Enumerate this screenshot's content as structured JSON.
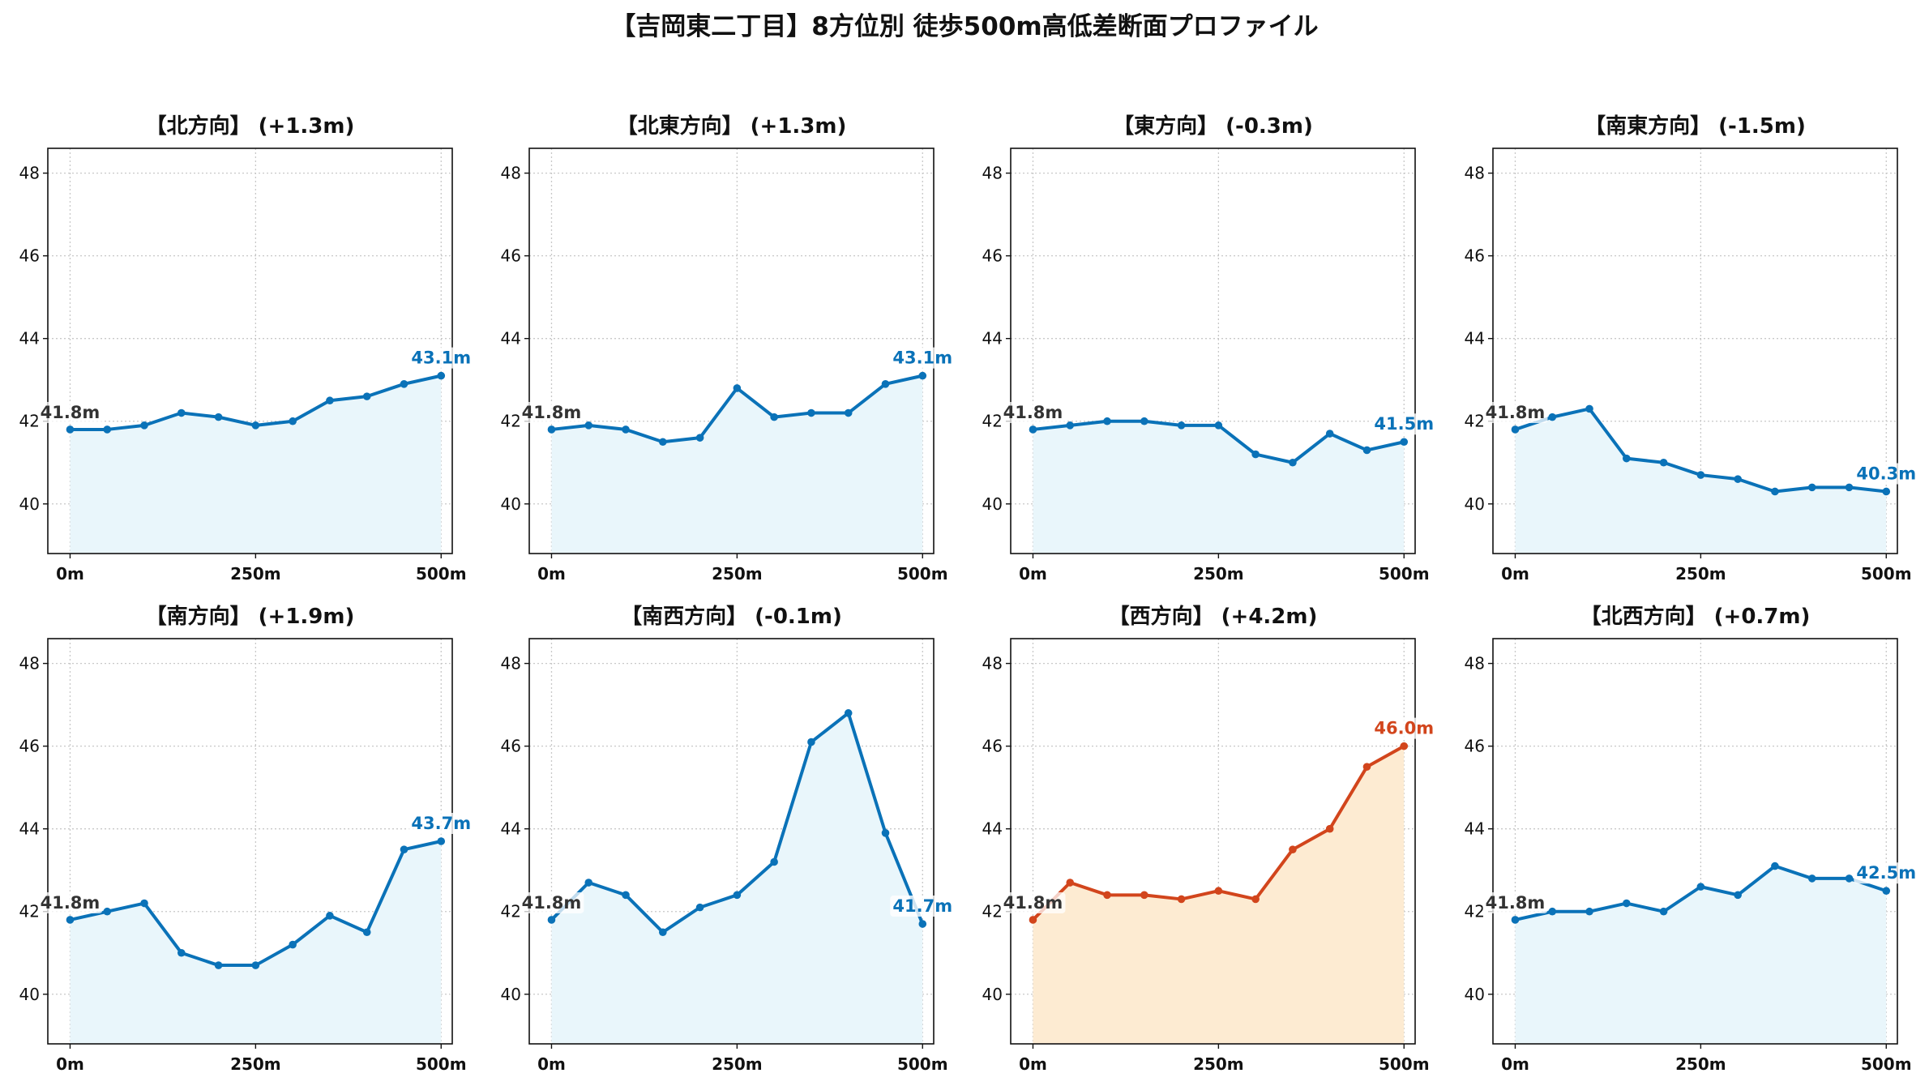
{
  "chart_data": {
    "title": "【吉岡東二丁目】8方位別 徒歩500m高低差断面プロファイル",
    "type": "line",
    "layout": "2x4",
    "ylim": [
      38.8,
      48.6
    ],
    "yticks": [
      40,
      42,
      44,
      46,
      48
    ],
    "xticks": [
      0,
      250,
      500
    ],
    "xtick_labels": [
      "0m",
      "250m",
      "500m"
    ],
    "grid": true,
    "colors": {
      "normal_line": "#0a72b8",
      "normal_fill": "#e9f6fb",
      "highlight_line": "#d2451c",
      "highlight_fill": "#fdebd2",
      "start_label": "#333333"
    },
    "x": [
      0,
      50,
      100,
      150,
      200,
      250,
      300,
      350,
      400,
      450,
      500
    ],
    "panels": [
      {
        "title": "【北方向】 (+1.3m)",
        "values": [
          41.8,
          41.8,
          41.9,
          42.2,
          42.1,
          41.9,
          42.0,
          42.5,
          42.6,
          42.9,
          43.1
        ],
        "start_label": "41.8m",
        "end_label": "43.1m",
        "highlight": false
      },
      {
        "title": "【北東方向】 (+1.3m)",
        "values": [
          41.8,
          41.9,
          41.8,
          41.5,
          41.6,
          42.8,
          42.1,
          42.2,
          42.2,
          42.9,
          43.1
        ],
        "start_label": "41.8m",
        "end_label": "43.1m",
        "highlight": false
      },
      {
        "title": "【東方向】 (-0.3m)",
        "values": [
          41.8,
          41.9,
          42.0,
          42.0,
          41.9,
          41.9,
          41.2,
          41.0,
          41.7,
          41.3,
          41.5
        ],
        "start_label": "41.8m",
        "end_label": "41.5m",
        "highlight": false
      },
      {
        "title": "【南東方向】 (-1.5m)",
        "values": [
          41.8,
          42.1,
          42.3,
          41.1,
          41.0,
          40.7,
          40.6,
          40.3,
          40.4,
          40.4,
          40.3
        ],
        "start_label": "41.8m",
        "end_label": "40.3m",
        "highlight": false
      },
      {
        "title": "【南方向】 (+1.9m)",
        "values": [
          41.8,
          42.0,
          42.2,
          41.0,
          40.7,
          40.7,
          41.2,
          41.9,
          41.5,
          43.5,
          43.7
        ],
        "start_label": "41.8m",
        "end_label": "43.7m",
        "highlight": false
      },
      {
        "title": "【南西方向】 (-0.1m)",
        "values": [
          41.8,
          42.7,
          42.4,
          41.5,
          42.1,
          42.4,
          43.2,
          46.1,
          46.8,
          43.9,
          41.7
        ],
        "start_label": "41.8m",
        "end_label": "41.7m",
        "highlight": false
      },
      {
        "title": "【西方向】 (+4.2m)",
        "values": [
          41.8,
          42.7,
          42.4,
          42.4,
          42.3,
          42.5,
          42.3,
          43.5,
          44.0,
          45.5,
          46.0
        ],
        "start_label": "41.8m",
        "end_label": "46.0m",
        "highlight": true
      },
      {
        "title": "【北西方向】 (+0.7m)",
        "values": [
          41.8,
          42.0,
          42.0,
          42.2,
          42.0,
          42.6,
          42.4,
          43.1,
          42.8,
          42.8,
          42.5
        ],
        "start_label": "41.8m",
        "end_label": "42.5m",
        "highlight": false
      }
    ]
  }
}
